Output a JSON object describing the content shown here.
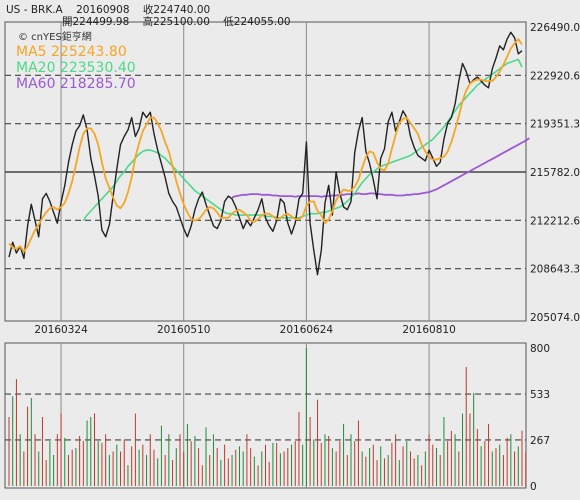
{
  "header": {
    "symbol": "US - BRK.A",
    "date": "20160908",
    "close_label": "收224740.00",
    "open_label": "開224499.98",
    "high_label": "高225100.00",
    "low_label": "低224055.00",
    "brand": "© cnYES鉅亨網"
  },
  "colors": {
    "price": "#222222",
    "ma5": "#f5a623",
    "ma20": "#4cd98a",
    "ma60": "#9b59d6",
    "vol_up": "#c0392b",
    "vol_down": "#1e8c3a",
    "grid": "#444444",
    "background": "#ebebeb"
  },
  "chart_data": {
    "type": "line",
    "x_ticks": [
      "20160324",
      "20160510",
      "20160624",
      "20160810"
    ],
    "x_tick_index": [
      14,
      47,
      80,
      113
    ],
    "y_ticks": [
      205074.0,
      208643.33,
      212212.67,
      215782.0,
      219351.33,
      222920.67,
      226490.0
    ],
    "ylim": [
      205074.0,
      226490.0
    ],
    "ma_legend": [
      {
        "name": "MA5",
        "value": "225243.80"
      },
      {
        "name": "MA20",
        "value": "223530.40"
      },
      {
        "name": "MA60",
        "value": "218285.70"
      }
    ],
    "price": [
      209500,
      210600,
      209800,
      210300,
      209400,
      211800,
      213400,
      212200,
      211000,
      213800,
      214200,
      213600,
      212800,
      212000,
      213500,
      214800,
      216500,
      217800,
      218800,
      219200,
      220000,
      218900,
      216800,
      215500,
      214000,
      211500,
      211000,
      211900,
      214000,
      216000,
      217800,
      218400,
      218900,
      219800,
      218400,
      219000,
      220200,
      219800,
      220200,
      218600,
      217400,
      216400,
      215400,
      214200,
      213600,
      213200,
      212400,
      211600,
      211000,
      211800,
      213000,
      213800,
      214300,
      213400,
      212600,
      211800,
      211600,
      212200,
      213600,
      214000,
      213800,
      213200,
      212400,
      211600,
      212200,
      211800,
      212400,
      213000,
      213800,
      212400,
      211800,
      211400,
      212200,
      213800,
      213500,
      212000,
      211200,
      212000,
      213800,
      214200,
      218000,
      212000,
      210000,
      208200,
      210000,
      213500,
      214800,
      212600,
      215800,
      214200,
      213200,
      213000,
      213600,
      217200,
      218800,
      219800,
      217300,
      216400,
      215200,
      213800,
      216800,
      217500,
      219500,
      220200,
      218800,
      219500,
      220300,
      219800,
      218400,
      217600,
      217000,
      216800,
      216600,
      217400,
      216800,
      216200,
      216500,
      218200,
      219400,
      219800,
      220800,
      222500,
      223800,
      223200,
      222300,
      222600,
      222800,
      222500,
      222200,
      222000,
      223400,
      224200,
      225100,
      224800,
      225600,
      226100,
      225700,
      224500,
      224740
    ],
    "ma5": [
      210500,
      210200,
      210100,
      210300,
      209900,
      210300,
      210900,
      211500,
      211900,
      212400,
      212800,
      213100,
      213200,
      213000,
      213200,
      213500,
      214200,
      215100,
      216300,
      217600,
      218600,
      219000,
      219000,
      218600,
      217800,
      216500,
      215300,
      214600,
      213900,
      213300,
      213100,
      213500,
      214300,
      215400,
      216900,
      217900,
      218800,
      219300,
      219800,
      219800,
      219400,
      218800,
      218000,
      217300,
      216200,
      215100,
      214200,
      213400,
      212800,
      212300,
      212200,
      212300,
      212600,
      213000,
      213200,
      213100,
      212800,
      212400,
      212400,
      212400,
      212700,
      212900,
      213000,
      212800,
      212600,
      212200,
      212100,
      212300,
      212600,
      212700,
      212700,
      212500,
      212300,
      212400,
      212600,
      212700,
      212500,
      212300,
      212300,
      212500,
      213300,
      213600,
      213600,
      212900,
      212600,
      212000,
      212300,
      212900,
      213700,
      214100,
      214500,
      214400,
      214400,
      214700,
      215200,
      216100,
      216900,
      217300,
      217200,
      216500,
      216000,
      215900,
      216400,
      217500,
      218500,
      219400,
      219700,
      219800,
      219400,
      219000,
      218600,
      217800,
      217300,
      216900,
      216700,
      216700,
      216800,
      216900,
      217300,
      218000,
      218900,
      219900,
      221000,
      221800,
      222300,
      222500,
      222600,
      222600,
      222500,
      222500,
      222500,
      222800,
      223200,
      223700,
      224300,
      224900,
      225300,
      225600,
      225200
    ],
    "ma20": [
      null,
      null,
      null,
      null,
      null,
      null,
      null,
      null,
      null,
      null,
      null,
      null,
      null,
      null,
      null,
      null,
      null,
      null,
      null,
      null,
      212200,
      212600,
      212900,
      213200,
      213500,
      213800,
      214100,
      214400,
      214700,
      215100,
      215500,
      215800,
      216200,
      216500,
      216800,
      217100,
      217300,
      217400,
      217400,
      217300,
      217200,
      217000,
      216800,
      216500,
      216200,
      215900,
      215600,
      215300,
      215000,
      214700,
      214400,
      214200,
      214000,
      213800,
      213600,
      213400,
      213200,
      213000,
      212800,
      212700,
      212700,
      212600,
      212600,
      212600,
      212600,
      212600,
      212600,
      212600,
      212600,
      212500,
      212500,
      212500,
      212400,
      212400,
      212400,
      212400,
      212400,
      212400,
      212400,
      212500,
      212600,
      212700,
      212700,
      212700,
      212800,
      212800,
      212900,
      213000,
      213100,
      213200,
      213400,
      213600,
      213900,
      214200,
      214600,
      215000,
      215300,
      215600,
      215800,
      216000,
      216200,
      216300,
      216400,
      216500,
      216600,
      216700,
      216800,
      216900,
      217000,
      217200,
      217400,
      217600,
      217800,
      218000,
      218200,
      218500,
      218800,
      219100,
      219500,
      219900,
      220300,
      220700,
      221000,
      221300,
      221600,
      221900,
      222200,
      222400,
      222600,
      222800,
      223000,
      223200,
      223400,
      223600,
      223800,
      223900,
      224000,
      224100,
      223530
    ],
    "ma60": [
      null,
      null,
      null,
      null,
      null,
      null,
      null,
      null,
      null,
      null,
      null,
      null,
      null,
      null,
      null,
      null,
      null,
      null,
      null,
      null,
      null,
      null,
      null,
      null,
      null,
      null,
      null,
      null,
      null,
      null,
      null,
      null,
      null,
      null,
      null,
      null,
      null,
      null,
      null,
      null,
      null,
      null,
      null,
      null,
      null,
      null,
      null,
      null,
      null,
      null,
      null,
      null,
      null,
      null,
      null,
      null,
      null,
      null,
      null,
      null,
      213900,
      214000,
      214050,
      214100,
      214100,
      214150,
      214150,
      214150,
      214100,
      214100,
      214100,
      214050,
      214050,
      214000,
      214000,
      214000,
      214000,
      213950,
      214000,
      214000,
      214000,
      214000,
      214000,
      214000,
      213950,
      214000,
      214000,
      214050,
      214050,
      214100,
      214100,
      214150,
      214150,
      214150,
      214200,
      214150,
      214150,
      214200,
      214200,
      214150,
      214150,
      214100,
      214100,
      214100,
      214050,
      214050,
      214050,
      214100,
      214100,
      214150,
      214150,
      214200,
      214250,
      214300,
      214400,
      214500,
      214650,
      214800,
      214950,
      215100,
      215250,
      215400,
      215550,
      215700,
      215850,
      216000,
      216150,
      216300,
      216450,
      216600,
      216750,
      216900,
      217050,
      217200,
      217350,
      217500,
      217650,
      217800,
      217950,
      218100,
      218285
    ],
    "volume_ticks": [
      0,
      267,
      533,
      800
    ],
    "volume_ylim": [
      0,
      800
    ],
    "volume": [
      400,
      520,
      620,
      300,
      200,
      460,
      510,
      300,
      200,
      400,
      150,
      260,
      180,
      300,
      420,
      280,
      180,
      210,
      220,
      290,
      260,
      380,
      400,
      420,
      260,
      250,
      300,
      180,
      200,
      240,
      200,
      270,
      120,
      230,
      420,
      210,
      240,
      180,
      300,
      210,
      160,
      350,
      180,
      300,
      150,
      220,
      300,
      200,
      360,
      260,
      290,
      220,
      120,
      340,
      180,
      300,
      220,
      150,
      240,
      160,
      180,
      210,
      230,
      200,
      300,
      220,
      170,
      120,
      200,
      240,
      140,
      250,
      250,
      190,
      200,
      220,
      240,
      260,
      430,
      240,
      800,
      400,
      270,
      500,
      250,
      300,
      290,
      220,
      200,
      260,
      360,
      180,
      300,
      260,
      380,
      200,
      170,
      220,
      240,
      150,
      230,
      160,
      180,
      250,
      300,
      150,
      230,
      260,
      200,
      160,
      180,
      120,
      200,
      300,
      240,
      220,
      180,
      400,
      260,
      320,
      300,
      200,
      420,
      690,
      420,
      540,
      330,
      230,
      260,
      360,
      200,
      220,
      240,
      180,
      280,
      300,
      200,
      230,
      320,
      200
    ],
    "volume_up": [
      1,
      0,
      1,
      0,
      1,
      1,
      0,
      1,
      0,
      1,
      1,
      0,
      0,
      1,
      1,
      0,
      1,
      1,
      0,
      1,
      1,
      0,
      0,
      1,
      0,
      1,
      1,
      0,
      1,
      0,
      1,
      1,
      0,
      1,
      1,
      0,
      1,
      0,
      1,
      1,
      0,
      0,
      1,
      0,
      1,
      0,
      1,
      1,
      0,
      1,
      0,
      1,
      1,
      0,
      1,
      0,
      1,
      0,
      1,
      1,
      0,
      1,
      0,
      0,
      1,
      1,
      0,
      1,
      0,
      1,
      1,
      0,
      1,
      0,
      1,
      1,
      0,
      1,
      1,
      0,
      0,
      1,
      0,
      1,
      1,
      0,
      1,
      0,
      1,
      1,
      0,
      1,
      0,
      1,
      1,
      0,
      1,
      0,
      1,
      1,
      0,
      1,
      0,
      1,
      1,
      0,
      1,
      0,
      1,
      1,
      0,
      1,
      0,
      1,
      1,
      0,
      1,
      0,
      1,
      1,
      0,
      1,
      0,
      1,
      1,
      0,
      1,
      0,
      1,
      1,
      0,
      1,
      0,
      1,
      1,
      0,
      1,
      0,
      1,
      1
    ]
  }
}
